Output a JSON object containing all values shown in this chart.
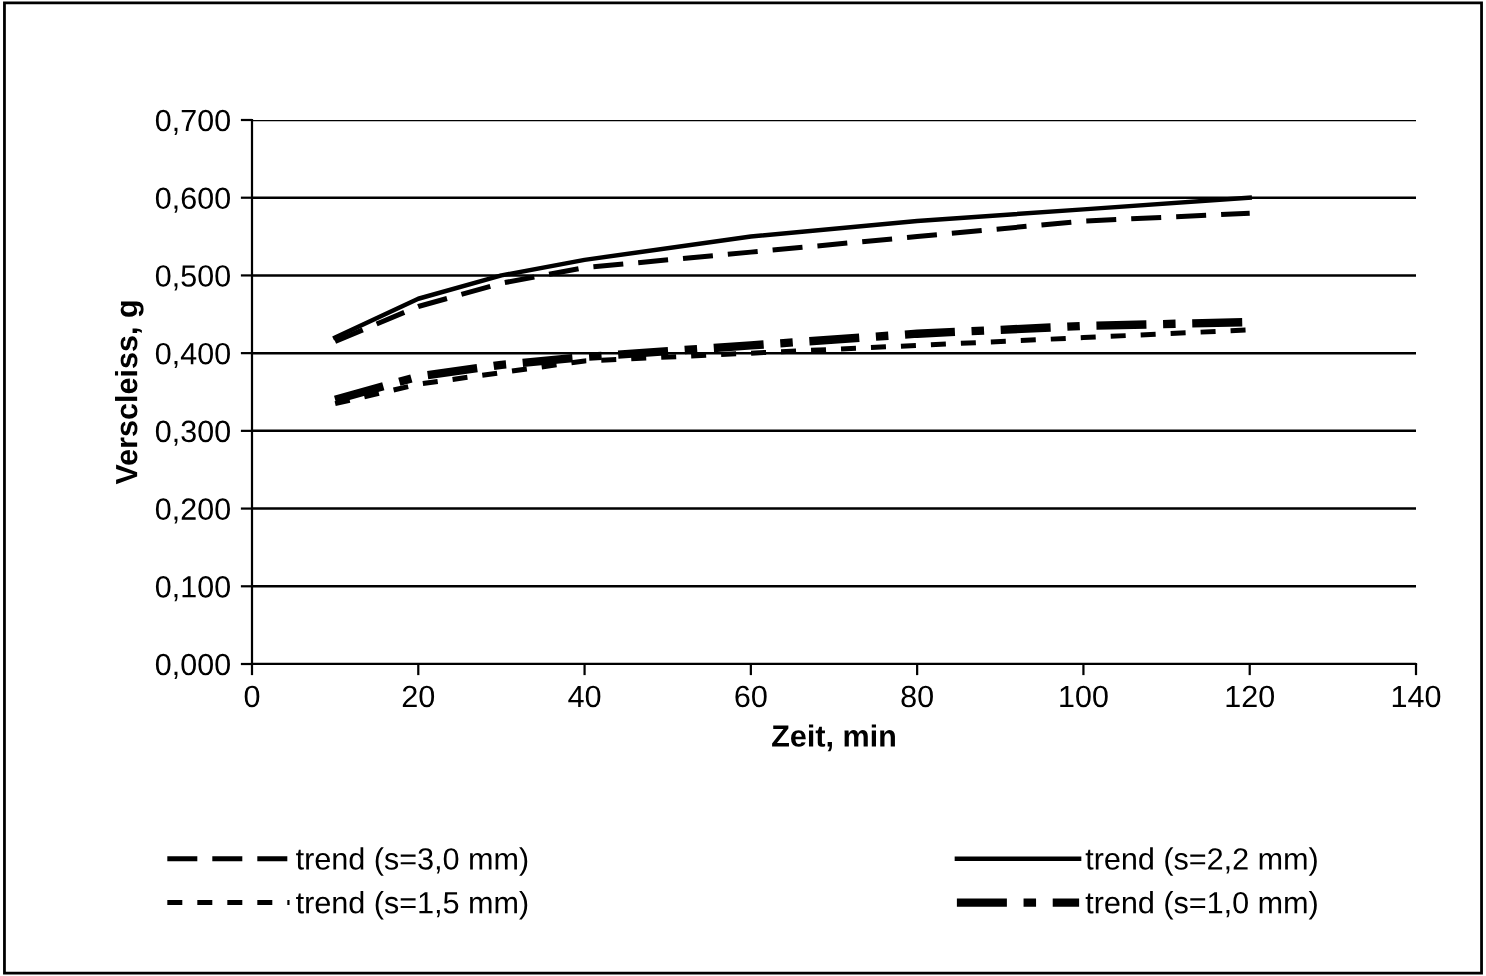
{
  "chart_data": {
    "type": "line",
    "xlabel": "Zeit, min",
    "ylabel": "Verscleiss, g",
    "x": [
      10,
      20,
      30,
      40,
      60,
      80,
      100,
      120
    ],
    "series": [
      {
        "name": "trend (s=3,0 mm)",
        "color": "#000000",
        "line_style": "dashed",
        "values": [
          0.415,
          0.46,
          0.49,
          0.51,
          0.53,
          0.55,
          0.57,
          0.58
        ]
      },
      {
        "name": "trend (s=2,2 mm)",
        "color": "#000000",
        "line_style": "solid",
        "values": [
          0.42,
          0.47,
          0.5,
          0.52,
          0.55,
          0.57,
          0.585,
          0.6
        ]
      },
      {
        "name": "trend (s=1,5 mm)",
        "color": "#000000",
        "line_style": "dotted",
        "values": [
          0.335,
          0.36,
          0.375,
          0.39,
          0.4,
          0.41,
          0.42,
          0.43
        ]
      },
      {
        "name": "trend (s=1,0 mm)",
        "color": "#000000",
        "line_style": "dashdot",
        "values": [
          0.34,
          0.37,
          0.385,
          0.395,
          0.41,
          0.425,
          0.435,
          0.44
        ]
      }
    ],
    "xlim": [
      0,
      140
    ],
    "xticks": [
      0,
      20,
      40,
      60,
      80,
      100,
      120,
      140
    ],
    "ylim": [
      0,
      0.7
    ],
    "yticks": [
      {
        "value": 0,
        "label": "0,000"
      },
      {
        "value": 0.1,
        "label": "0,100"
      },
      {
        "value": 0.2,
        "label": "0,200"
      },
      {
        "value": 0.3,
        "label": "0,300"
      },
      {
        "value": 0.4,
        "label": "0,400"
      },
      {
        "value": 0.5,
        "label": "0,500"
      },
      {
        "value": 0.6,
        "label": "0,600"
      },
      {
        "value": 0.7,
        "label": "0,700"
      }
    ],
    "grid": "y",
    "legend": "bottom",
    "marker": "none"
  }
}
